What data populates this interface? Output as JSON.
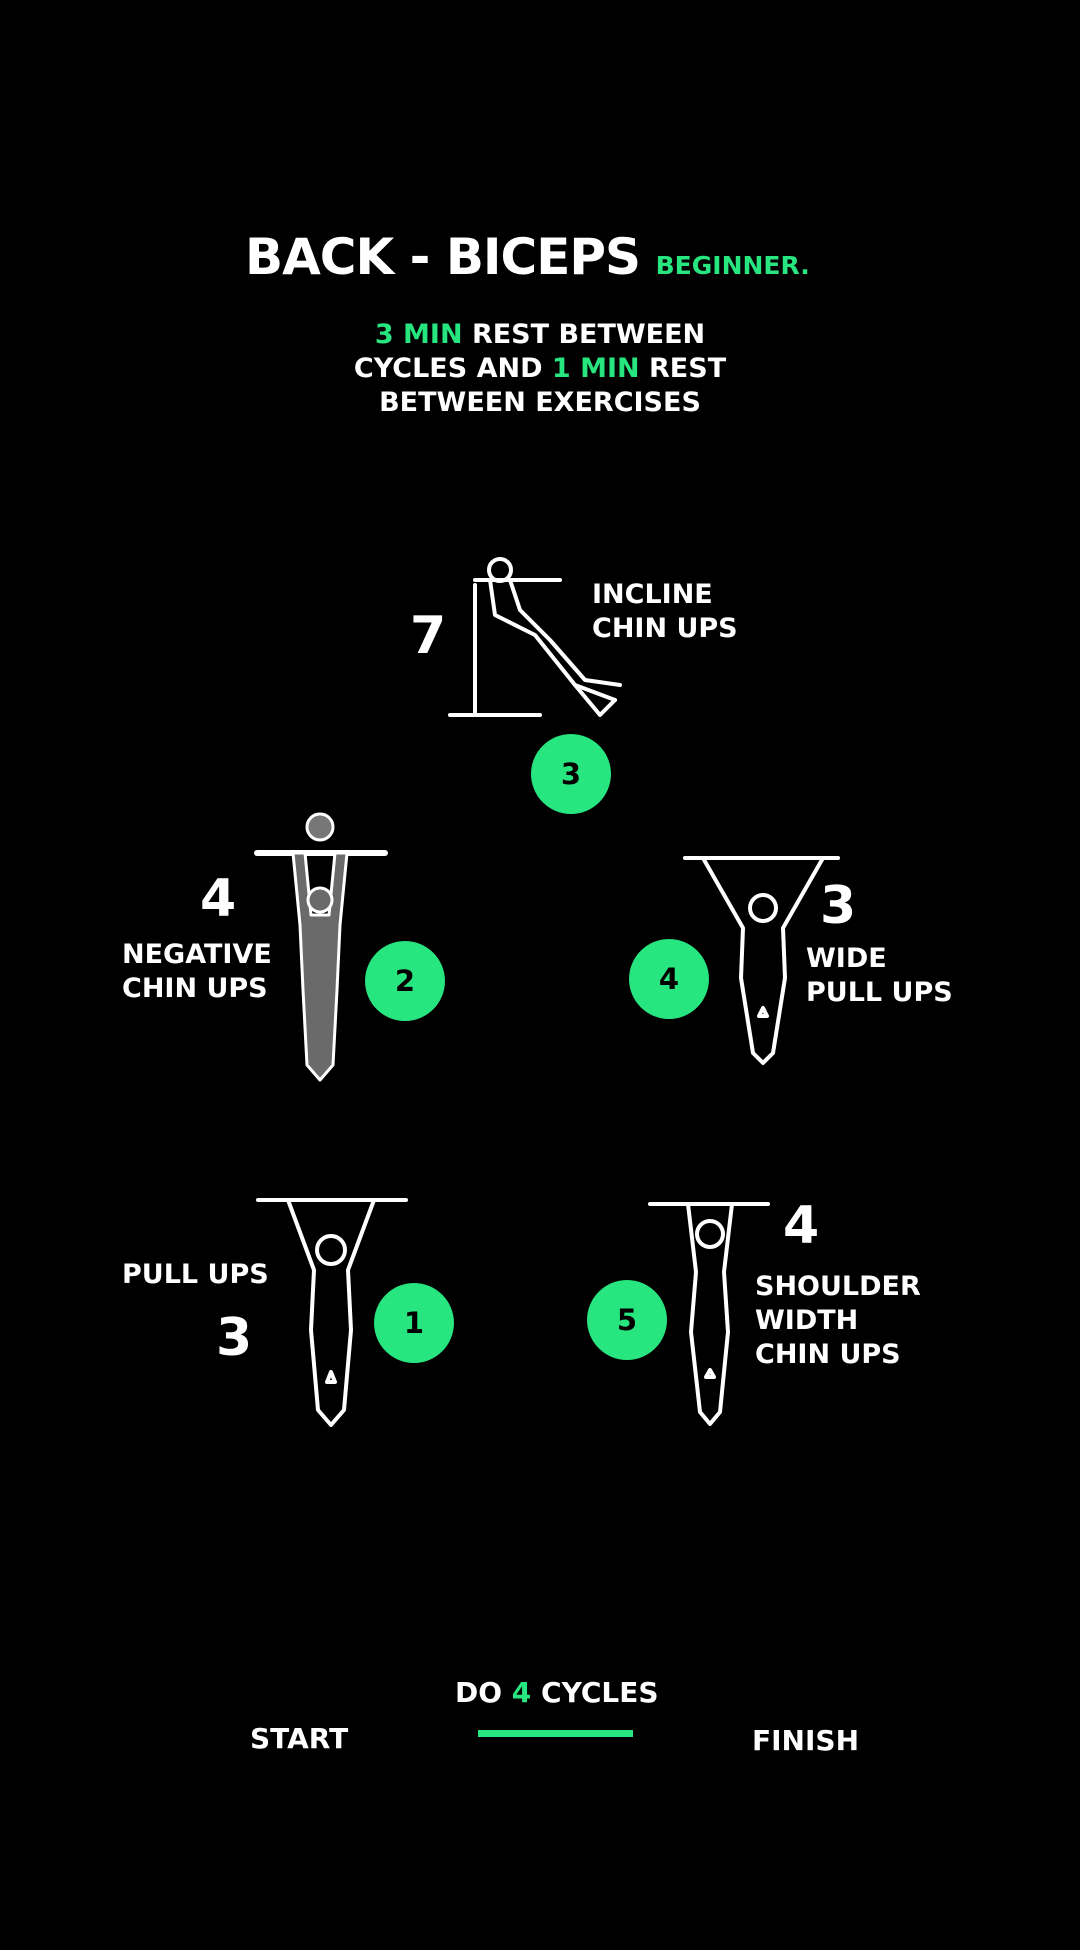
{
  "header": {
    "title": "BACK - BICEPS",
    "level": "BEGINNER.",
    "rest_part1_value": "3 MIN",
    "rest_part1_text": " REST BETWEEN",
    "rest_part2_text": "CYCLES AND ",
    "rest_part2_value": "1 MIN",
    "rest_part2_tail": " REST",
    "rest_part3_text": "BETWEEN EXERCISES"
  },
  "exercises": [
    {
      "order": "1",
      "name_lines": [
        "PULL UPS"
      ],
      "reps": "3"
    },
    {
      "order": "2",
      "name_lines": [
        "NEGATIVE",
        "CHIN UPS"
      ],
      "reps": "4"
    },
    {
      "order": "3",
      "name_lines": [
        "INCLINE",
        "CHIN UPS"
      ],
      "reps": "7"
    },
    {
      "order": "4",
      "name_lines": [
        "WIDE",
        "PULL UPS"
      ],
      "reps": "3"
    },
    {
      "order": "5",
      "name_lines": [
        "SHOULDER",
        "WIDTH",
        "CHIN UPS"
      ],
      "reps": "4"
    }
  ],
  "footer": {
    "start": "START",
    "finish": "FINISH",
    "cycles_prefix": "DO ",
    "cycles_value": "4",
    "cycles_suffix": " CYCLES"
  },
  "colors": {
    "accent": "#27e57f",
    "background": "#000000",
    "text": "#ffffff"
  }
}
